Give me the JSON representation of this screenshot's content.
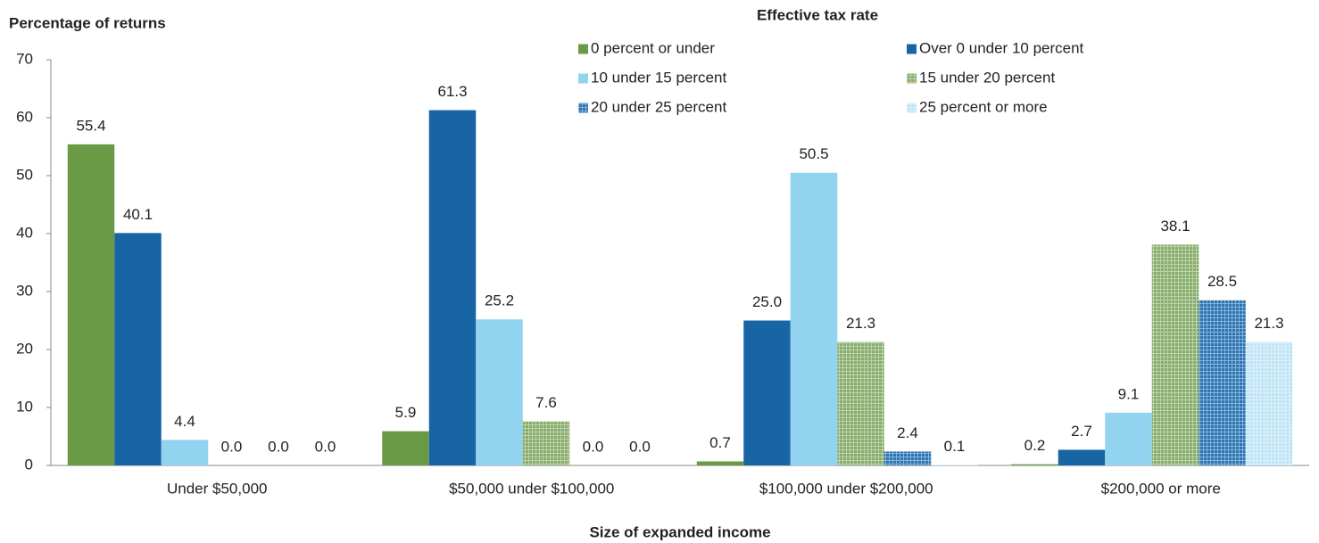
{
  "chart_data": {
    "type": "bar",
    "y_label": "Percentage of returns",
    "x_label": "Size of expanded income",
    "legend_title": "Effective tax rate",
    "categories": [
      "Under $50,000",
      "$50,000 under $100,000",
      "$100,000 under $200,000",
      "$200,000 or more"
    ],
    "series": [
      {
        "name": "0 percent or under",
        "color": "#6a9a45",
        "pattern": false,
        "values": [
          55.4,
          5.9,
          0.7,
          0.2
        ],
        "value_labels": [
          "55.4",
          "5.9",
          "0.7",
          "0.2"
        ]
      },
      {
        "name": "Over 0 under 10 percent",
        "color": "#1865a5",
        "pattern": false,
        "values": [
          40.1,
          61.3,
          25.0,
          2.7
        ],
        "value_labels": [
          "40.1",
          "61.3",
          "25.0",
          "2.7"
        ]
      },
      {
        "name": "10 under 15 percent",
        "color": "#92d3f0",
        "pattern": false,
        "values": [
          4.4,
          25.2,
          50.5,
          9.1
        ],
        "value_labels": [
          "4.4",
          "25.2",
          "50.5",
          "9.1"
        ]
      },
      {
        "name": "15 under 20 percent",
        "color": "#86ad6a",
        "pattern": true,
        "values": [
          0.0,
          7.6,
          21.3,
          38.1
        ],
        "value_labels": [
          "0.0",
          "7.6",
          "21.3",
          "38.1"
        ]
      },
      {
        "name": "20 under 25 percent",
        "color": "#2a74b4",
        "pattern": true,
        "values": [
          0.0,
          0.0,
          2.4,
          28.5
        ],
        "value_labels": [
          "0.0",
          "0.0",
          "2.4",
          "28.5"
        ]
      },
      {
        "name": "25 percent or more",
        "color": "#bfe4f6",
        "pattern": true,
        "values": [
          0.0,
          0.0,
          0.1,
          21.3
        ],
        "value_labels": [
          "0.0",
          "0.0",
          "0.1",
          "21.3"
        ]
      }
    ],
    "ylim": [
      0,
      70
    ],
    "yticks": [
      0,
      10,
      20,
      30,
      40,
      50,
      60,
      70
    ],
    "grid": false,
    "legend": "top-right"
  }
}
